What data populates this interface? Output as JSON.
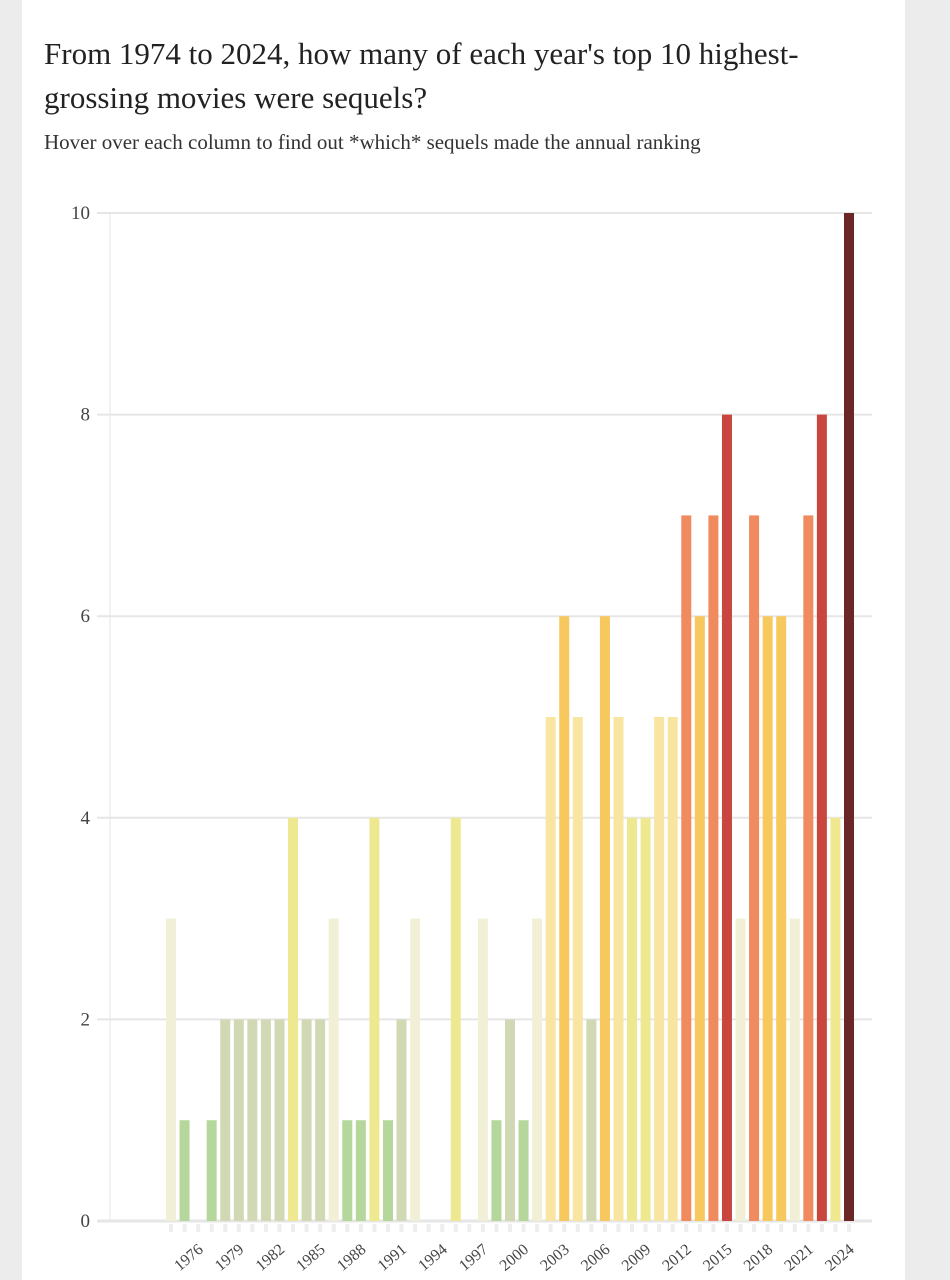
{
  "chart_data": {
    "type": "bar",
    "title": "From 1974 to 2024, how many of each year's top 10 highest-grossing movies were sequels?",
    "subtitle": "Hover over each column to find out *which* sequels made the annual ranking",
    "categories": [
      null,
      null,
      "1976",
      null,
      null,
      "1979",
      null,
      null,
      "1982",
      null,
      null,
      "1985",
      null,
      null,
      "1988",
      null,
      null,
      "1991",
      null,
      null,
      "1994",
      null,
      null,
      "1997",
      null,
      null,
      "2000",
      null,
      null,
      "2003",
      null,
      null,
      "2006",
      null,
      null,
      "2009",
      null,
      null,
      "2012",
      null,
      null,
      "2015",
      null,
      null,
      "2018",
      null,
      null,
      "2021",
      null,
      null,
      "2024"
    ],
    "values": [
      3,
      1,
      0,
      1,
      2,
      2,
      2,
      2,
      2,
      4,
      2,
      2,
      3,
      1,
      1,
      4,
      1,
      2,
      3,
      0,
      0,
      4,
      0,
      3,
      1,
      2,
      1,
      3,
      5,
      6,
      5,
      2,
      6,
      5,
      4,
      4,
      5,
      5,
      7,
      6,
      7,
      8,
      3,
      7,
      6,
      6,
      3,
      7,
      8,
      4,
      10
    ],
    "colors": {
      "0": "#b6d79c",
      "1": "#b6d79c",
      "2": "#d0d9b4",
      "3": "#f1f0d6",
      "4": "#eee890",
      "5": "#f8e5a2",
      "6": "#f6c85e",
      "7": "#ef8b5f",
      "8": "#c8463e",
      "10": "#6b2628"
    },
    "ylim": [
      0,
      10
    ],
    "yticks": [
      0,
      2,
      4,
      6,
      8,
      10
    ],
    "grid": true
  }
}
